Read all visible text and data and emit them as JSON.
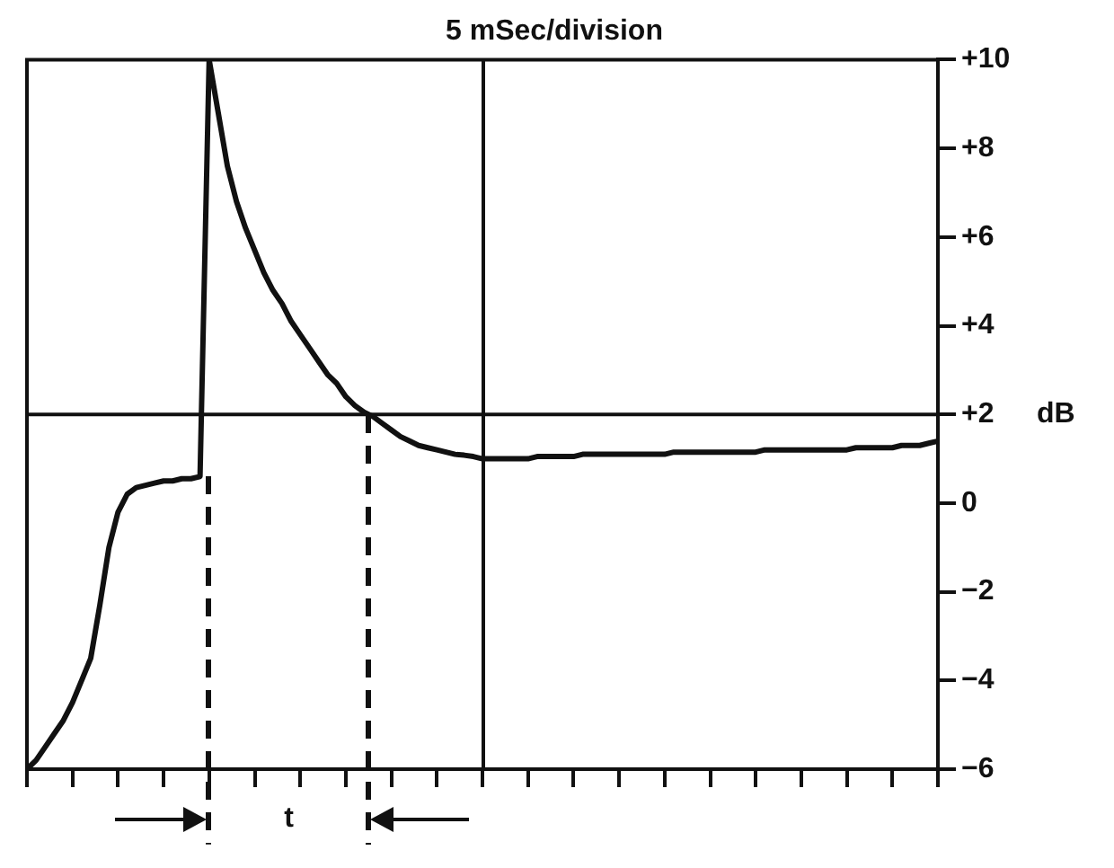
{
  "chart_data": {
    "type": "line",
    "title": "5 mSec/division",
    "ylabel": "dB",
    "categories": [
      null,
      null,
      null,
      null,
      null,
      null,
      null,
      null,
      null,
      null,
      null,
      null,
      null,
      null,
      null,
      null,
      null,
      null,
      null,
      null,
      null,
      null,
      null,
      null,
      null,
      null,
      null,
      null,
      null,
      null,
      null,
      null,
      null,
      null,
      null,
      null,
      null,
      null,
      null,
      null,
      null,
      null,
      null,
      null,
      null,
      null,
      null,
      null,
      null,
      null,
      null,
      null,
      null,
      null,
      null,
      null,
      null,
      null,
      null,
      null,
      null,
      null,
      null,
      null,
      null,
      null,
      null,
      null,
      null,
      null,
      null,
      null,
      null,
      null,
      null,
      null,
      null,
      null,
      null,
      null,
      null,
      null,
      null,
      null,
      null,
      null,
      null,
      null,
      null,
      null,
      null,
      null,
      null,
      null,
      null,
      null,
      null,
      null,
      null,
      null,
      null
    ],
    "ylim": [
      -6,
      10
    ],
    "yticks": [
      {
        "value": 10,
        "label": "+10"
      },
      {
        "value": 8,
        "label": "+8"
      },
      {
        "value": 6,
        "label": "+6"
      },
      {
        "value": 4,
        "label": "+4"
      },
      {
        "value": 2,
        "label": "+2"
      },
      {
        "value": 0,
        "label": "0"
      },
      {
        "value": -2,
        "label": "−2"
      },
      {
        "value": -4,
        "label": "−4"
      },
      {
        "value": -6,
        "label": "−6"
      }
    ],
    "tick_labels": "y",
    "grid": false,
    "legend": false,
    "marker": "none",
    "line_style": "solid",
    "series": [
      {
        "color": "#111111",
        "values": [
          -6,
          -5.8,
          -5.5,
          -5.2,
          -4.9,
          -4.5,
          -4,
          -3.5,
          -2.3,
          -1,
          -0.2,
          0.2,
          0.35,
          0.4,
          0.45,
          0.5,
          0.5,
          0.55,
          0.55,
          0.6,
          10,
          8.8,
          7.6,
          6.8,
          6.2,
          5.7,
          5.2,
          4.8,
          4.5,
          4.1,
          3.8,
          3.5,
          3.2,
          2.9,
          2.7,
          2.4,
          2.2,
          2.05,
          1.95,
          1.8,
          1.65,
          1.5,
          1.4,
          1.3,
          1.25,
          1.2,
          1.15,
          1.1,
          1.08,
          1.05,
          1,
          1,
          1,
          1,
          1,
          1,
          1.05,
          1.05,
          1.05,
          1.05,
          1.05,
          1.1,
          1.1,
          1.1,
          1.1,
          1.1,
          1.1,
          1.1,
          1.1,
          1.1,
          1.1,
          1.15,
          1.15,
          1.15,
          1.15,
          1.15,
          1.15,
          1.15,
          1.15,
          1.15,
          1.15,
          1.2,
          1.2,
          1.2,
          1.2,
          1.2,
          1.2,
          1.2,
          1.2,
          1.2,
          1.2,
          1.25,
          1.25,
          1.25,
          1.25,
          1.25,
          1.3,
          1.3,
          1.3,
          1.35,
          1.4
        ]
      }
    ],
    "ref_lines": [
      {
        "axis": "y",
        "value": 2,
        "color": "#111111",
        "line_style": "solid"
      }
    ],
    "annotations": [
      "t"
    ]
  }
}
